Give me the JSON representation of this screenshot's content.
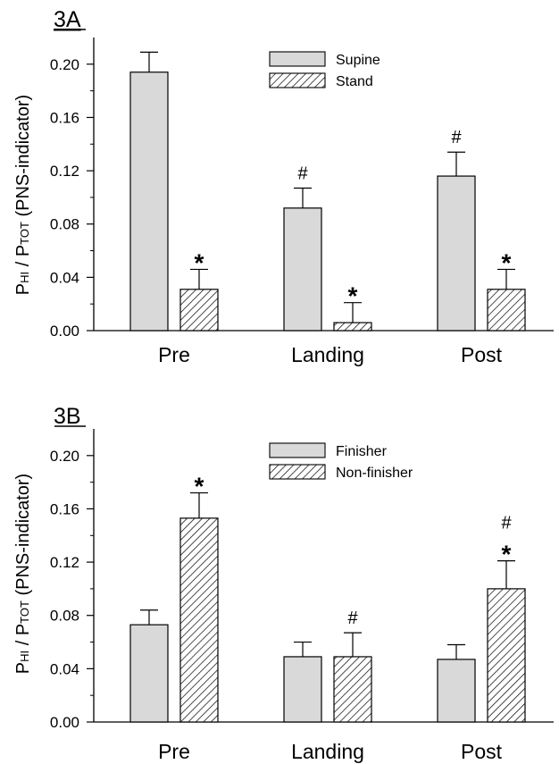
{
  "colors": {
    "supine_finisher_fill": "#d9d9d9",
    "stand_nonfinisher_fill": "hatched",
    "stroke": "#000000"
  },
  "chart_data": [
    {
      "panel_label": "3A",
      "type": "bar",
      "categories": [
        "Pre",
        "Landing",
        "Post"
      ],
      "ylabel_main": "P",
      "ylabel_sub1": "HI",
      "ylabel_mid": " / P",
      "ylabel_sub2": "TOT",
      "ylabel_tail": " (PNS-indicator)",
      "ylim": [
        0,
        0.22
      ],
      "yticks": [
        "0.00",
        "0.04",
        "0.08",
        "0.12",
        "0.16",
        "0.20"
      ],
      "series": [
        {
          "name": "Supine",
          "fill": "solid",
          "values": [
            0.194,
            0.092,
            0.116
          ],
          "errors": [
            0.015,
            0.015,
            0.018
          ],
          "marks": [
            "",
            "#",
            "#"
          ]
        },
        {
          "name": "Stand",
          "fill": "hatch",
          "values": [
            0.031,
            0.006,
            0.031
          ],
          "errors": [
            0.015,
            0.015,
            0.015
          ],
          "marks": [
            "*",
            "*",
            "*"
          ]
        }
      ],
      "legend_position": "top-center"
    },
    {
      "panel_label": "3B",
      "type": "bar",
      "categories": [
        "Pre",
        "Landing",
        "Post"
      ],
      "ylabel_main": "P",
      "ylabel_sub1": "HI",
      "ylabel_mid": " / P",
      "ylabel_sub2": "TOT",
      "ylabel_tail": " (PNS-indicator)",
      "ylim": [
        0,
        0.22
      ],
      "yticks": [
        "0.00",
        "0.04",
        "0.08",
        "0.12",
        "0.16",
        "0.20"
      ],
      "series": [
        {
          "name": "Finisher",
          "fill": "solid",
          "values": [
            0.073,
            0.049,
            0.047
          ],
          "errors": [
            0.011,
            0.011,
            0.011
          ],
          "marks": [
            "",
            "",
            ""
          ]
        },
        {
          "name": "Non-finisher",
          "fill": "hatch",
          "values": [
            0.153,
            0.049,
            0.1
          ],
          "errors": [
            0.019,
            0.018,
            0.021
          ],
          "marks": [
            "*",
            "#",
            "#\n*"
          ]
        }
      ],
      "legend_position": "top-center"
    }
  ]
}
